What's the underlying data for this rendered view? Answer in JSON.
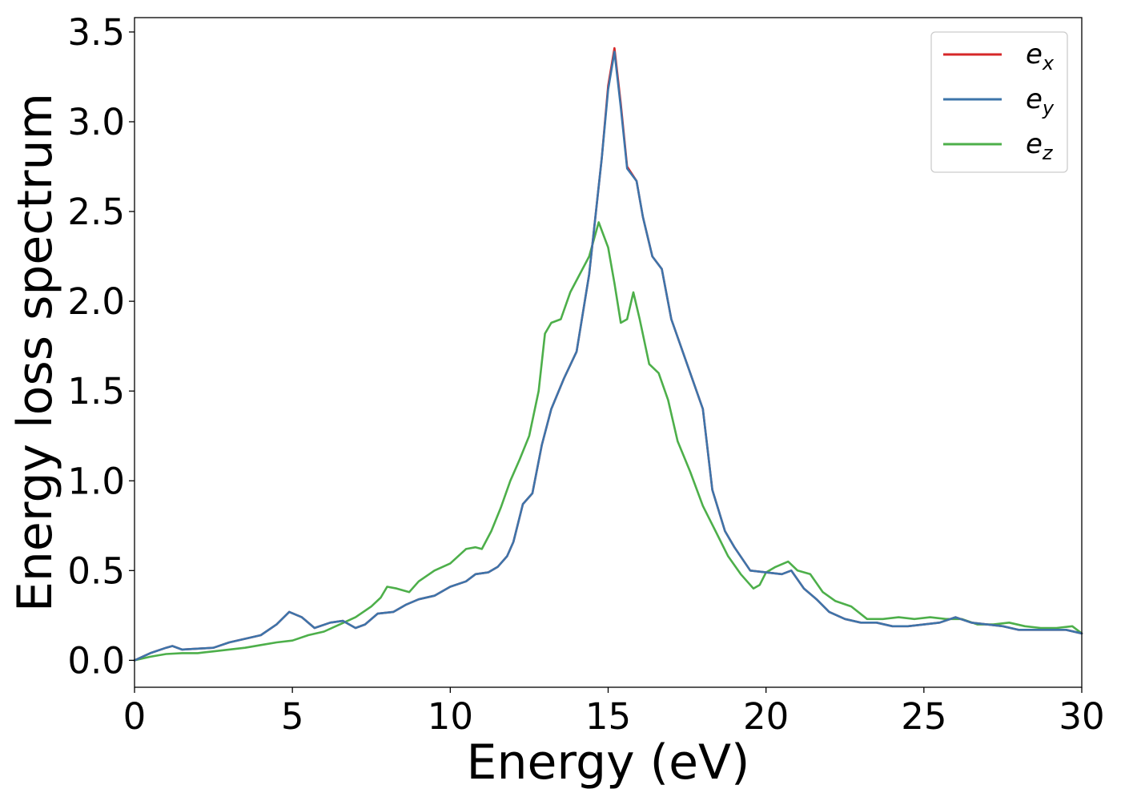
{
  "chart_data": {
    "type": "line",
    "title": "",
    "xlabel": "Energy (eV)",
    "ylabel": "Energy loss spectrum",
    "xlim": [
      0,
      30
    ],
    "ylim": [
      -0.15,
      3.58
    ],
    "xticks": [
      0,
      5,
      10,
      15,
      20,
      25,
      30
    ],
    "xtick_labels": [
      "0",
      "5",
      "10",
      "15",
      "20",
      "25",
      "30"
    ],
    "yticks": [
      0.0,
      0.5,
      1.0,
      1.5,
      2.0,
      2.5,
      3.0,
      3.5
    ],
    "ytick_labels": [
      "0.0",
      "0.5",
      "1.0",
      "1.5",
      "2.0",
      "2.5",
      "3.0",
      "3.5"
    ],
    "grid": false,
    "legend_position": "top-right",
    "series": [
      {
        "name": "e_x",
        "label_base": "e",
        "label_sub": "x",
        "color": "#d62728",
        "x": [
          0,
          0.5,
          1.0,
          1.2,
          1.5,
          2,
          2.5,
          3,
          3.5,
          4,
          4.5,
          4.9,
          5.3,
          5.7,
          6.2,
          6.6,
          7.0,
          7.3,
          7.7,
          8.2,
          8.6,
          9,
          9.5,
          10,
          10.5,
          10.8,
          11.2,
          11.5,
          11.8,
          12.0,
          12.3,
          12.6,
          12.9,
          13.2,
          13.6,
          14.0,
          14.4,
          14.8,
          15.0,
          15.2,
          15.4,
          15.6,
          15.9,
          16.1,
          16.4,
          16.7,
          17.0,
          17.5,
          18.0,
          18.3,
          18.7,
          19.0,
          19.5,
          20,
          20.5,
          20.8,
          21.2,
          21.6,
          22,
          22.5,
          23,
          23.5,
          24,
          24.5,
          25,
          25.5,
          26,
          26.5,
          27,
          27.5,
          28,
          28.5,
          29,
          29.5,
          30
        ],
        "values": [
          0.0,
          0.04,
          0.07,
          0.08,
          0.06,
          0.065,
          0.07,
          0.1,
          0.12,
          0.14,
          0.2,
          0.27,
          0.24,
          0.18,
          0.21,
          0.22,
          0.18,
          0.2,
          0.26,
          0.27,
          0.31,
          0.34,
          0.36,
          0.41,
          0.44,
          0.48,
          0.49,
          0.52,
          0.58,
          0.66,
          0.87,
          0.93,
          1.2,
          1.4,
          1.57,
          1.72,
          2.15,
          2.8,
          3.2,
          3.41,
          3.1,
          2.75,
          2.67,
          2.47,
          2.25,
          2.18,
          1.9,
          1.65,
          1.4,
          0.95,
          0.72,
          0.63,
          0.5,
          0.49,
          0.48,
          0.5,
          0.4,
          0.34,
          0.27,
          0.23,
          0.21,
          0.21,
          0.19,
          0.19,
          0.2,
          0.21,
          0.24,
          0.21,
          0.2,
          0.19,
          0.17,
          0.17,
          0.17,
          0.17,
          0.15
        ]
      },
      {
        "name": "e_y",
        "label_base": "e",
        "label_sub": "y",
        "color": "#3d74aa",
        "x": [
          0,
          0.5,
          1.0,
          1.2,
          1.5,
          2,
          2.5,
          3,
          3.5,
          4,
          4.5,
          4.9,
          5.3,
          5.7,
          6.2,
          6.6,
          7.0,
          7.3,
          7.7,
          8.2,
          8.6,
          9,
          9.5,
          10,
          10.5,
          10.8,
          11.2,
          11.5,
          11.8,
          12.0,
          12.3,
          12.6,
          12.9,
          13.2,
          13.6,
          14.0,
          14.4,
          14.8,
          15.0,
          15.2,
          15.4,
          15.6,
          15.9,
          16.1,
          16.4,
          16.7,
          17.0,
          17.5,
          18.0,
          18.3,
          18.7,
          19.0,
          19.5,
          20,
          20.5,
          20.8,
          21.2,
          21.6,
          22,
          22.5,
          23,
          23.5,
          24,
          24.5,
          25,
          25.5,
          26,
          26.5,
          27,
          27.5,
          28,
          28.5,
          29,
          29.5,
          30
        ],
        "values": [
          0.0,
          0.04,
          0.07,
          0.08,
          0.06,
          0.065,
          0.07,
          0.1,
          0.12,
          0.14,
          0.2,
          0.27,
          0.24,
          0.18,
          0.21,
          0.22,
          0.18,
          0.2,
          0.26,
          0.27,
          0.31,
          0.34,
          0.36,
          0.41,
          0.44,
          0.48,
          0.49,
          0.52,
          0.58,
          0.66,
          0.87,
          0.93,
          1.2,
          1.4,
          1.57,
          1.72,
          2.15,
          2.8,
          3.18,
          3.39,
          3.08,
          2.74,
          2.67,
          2.47,
          2.25,
          2.18,
          1.9,
          1.65,
          1.4,
          0.95,
          0.72,
          0.63,
          0.5,
          0.49,
          0.48,
          0.5,
          0.4,
          0.34,
          0.27,
          0.23,
          0.21,
          0.21,
          0.19,
          0.19,
          0.2,
          0.21,
          0.24,
          0.21,
          0.2,
          0.19,
          0.17,
          0.17,
          0.17,
          0.17,
          0.15
        ]
      },
      {
        "name": "e_z",
        "label_base": "e",
        "label_sub": "z",
        "color": "#4daf4a",
        "x": [
          0,
          0.5,
          1,
          1.5,
          2,
          2.5,
          3,
          3.5,
          4,
          4.5,
          5,
          5.5,
          6,
          6.5,
          7,
          7.5,
          7.8,
          8,
          8.3,
          8.7,
          9,
          9.5,
          10,
          10.5,
          10.8,
          11.0,
          11.3,
          11.6,
          11.9,
          12.2,
          12.5,
          12.8,
          13.0,
          13.2,
          13.5,
          13.8,
          14.1,
          14.4,
          14.7,
          15.0,
          15.2,
          15.4,
          15.6,
          15.8,
          16.0,
          16.3,
          16.6,
          16.9,
          17.2,
          17.6,
          18.0,
          18.4,
          18.8,
          19.2,
          19.6,
          19.8,
          20.0,
          20.3,
          20.7,
          21.0,
          21.4,
          21.8,
          22.2,
          22.7,
          23.2,
          23.7,
          24.2,
          24.7,
          25.2,
          25.7,
          26.2,
          26.7,
          27.2,
          27.7,
          28.2,
          28.7,
          29.2,
          29.7,
          30
        ],
        "values": [
          0.0,
          0.02,
          0.035,
          0.04,
          0.04,
          0.05,
          0.06,
          0.07,
          0.085,
          0.1,
          0.11,
          0.14,
          0.16,
          0.2,
          0.24,
          0.3,
          0.35,
          0.41,
          0.4,
          0.38,
          0.44,
          0.5,
          0.54,
          0.62,
          0.63,
          0.62,
          0.72,
          0.85,
          1.0,
          1.12,
          1.25,
          1.5,
          1.82,
          1.88,
          1.9,
          2.05,
          2.15,
          2.25,
          2.44,
          2.3,
          2.1,
          1.88,
          1.9,
          2.05,
          1.9,
          1.65,
          1.6,
          1.45,
          1.22,
          1.05,
          0.86,
          0.72,
          0.58,
          0.48,
          0.4,
          0.42,
          0.49,
          0.52,
          0.55,
          0.5,
          0.48,
          0.38,
          0.33,
          0.3,
          0.23,
          0.23,
          0.24,
          0.23,
          0.24,
          0.23,
          0.23,
          0.2,
          0.2,
          0.21,
          0.19,
          0.18,
          0.18,
          0.19,
          0.15
        ]
      }
    ]
  }
}
